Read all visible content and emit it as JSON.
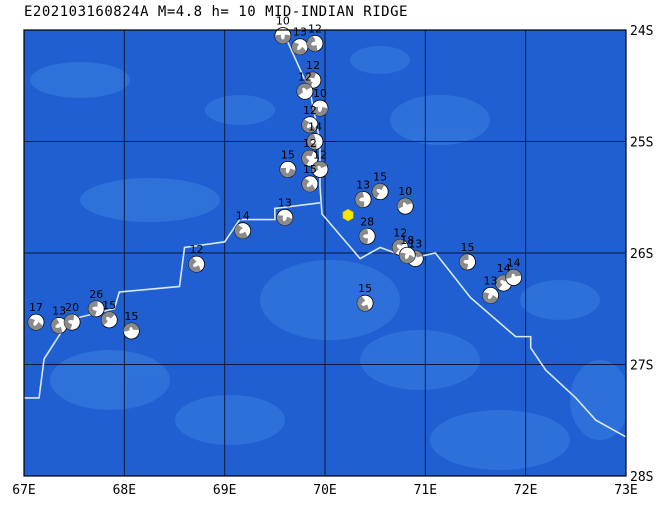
{
  "title": "E202103160824A M=4.8 h= 10 MID-INDIAN RIDGE",
  "colors": {
    "ocean": "#1f5fd1",
    "bathy_light": "#3a7fe0",
    "grid": "#0a1a3a",
    "ridge": "#d8e8f4",
    "epicenter": "#f7e600",
    "beachball_gray": "#8a8a8a"
  },
  "map": {
    "lon_min": 67,
    "lon_max": 73,
    "lat_min": -28,
    "lat_max": -24,
    "x_ticks": [
      {
        "value": 67,
        "label": "67E"
      },
      {
        "value": 68,
        "label": "68E"
      },
      {
        "value": 69,
        "label": "69E"
      },
      {
        "value": 70,
        "label": "70E"
      },
      {
        "value": 71,
        "label": "71E"
      },
      {
        "value": 72,
        "label": "72E"
      },
      {
        "value": 73,
        "label": "73E"
      }
    ],
    "y_ticks": [
      {
        "value": -24,
        "label": "24S"
      },
      {
        "value": -25,
        "label": "25S"
      },
      {
        "value": -26,
        "label": "26S"
      },
      {
        "value": -27,
        "label": "27S"
      },
      {
        "value": -28,
        "label": "28S"
      }
    ]
  },
  "ridge": [
    [
      69.6,
      -24.05
    ],
    [
      69.85,
      -24.55
    ],
    [
      69.95,
      -25.0
    ],
    [
      69.95,
      -25.4
    ],
    [
      69.97,
      -25.65
    ],
    [
      70.35,
      -26.05
    ],
    [
      70.55,
      -25.95
    ],
    [
      70.85,
      -26.05
    ],
    [
      71.1,
      -26.0
    ],
    [
      71.45,
      -26.4
    ],
    [
      71.9,
      -26.75
    ],
    [
      72.05,
      -26.75
    ],
    [
      72.05,
      -26.85
    ],
    [
      72.2,
      -27.05
    ],
    [
      72.5,
      -27.3
    ],
    [
      72.7,
      -27.5
    ],
    [
      73.0,
      -27.65
    ]
  ],
  "ridge_west": [
    [
      69.95,
      -25.55
    ],
    [
      69.5,
      -25.6
    ],
    [
      69.5,
      -25.7
    ],
    [
      69.15,
      -25.7
    ],
    [
      69.0,
      -25.9
    ],
    [
      68.6,
      -25.95
    ],
    [
      68.55,
      -26.3
    ],
    [
      67.95,
      -26.35
    ],
    [
      67.9,
      -26.5
    ],
    [
      67.45,
      -26.6
    ],
    [
      67.2,
      -26.95
    ],
    [
      67.15,
      -27.3
    ],
    [
      67.0,
      -27.3
    ]
  ],
  "epicenter": {
    "lon": 70.23,
    "lat": -25.66
  },
  "events": [
    {
      "lon": 69.58,
      "lat": -24.05,
      "depth": "10"
    },
    {
      "lon": 69.75,
      "lat": -24.15,
      "depth": "13"
    },
    {
      "lon": 69.9,
      "lat": -24.12,
      "depth": "12"
    },
    {
      "lon": 69.88,
      "lat": -24.45,
      "depth": "12"
    },
    {
      "lon": 69.8,
      "lat": -24.55,
      "depth": "12"
    },
    {
      "lon": 69.95,
      "lat": -24.7,
      "depth": "10"
    },
    {
      "lon": 69.85,
      "lat": -24.85,
      "depth": "12"
    },
    {
      "lon": 69.9,
      "lat": -25.0,
      "depth": "14"
    },
    {
      "lon": 69.85,
      "lat": -25.15,
      "depth": "12"
    },
    {
      "lon": 69.95,
      "lat": -25.25,
      "depth": "12"
    },
    {
      "lon": 69.63,
      "lat": -25.25,
      "depth": "15"
    },
    {
      "lon": 69.85,
      "lat": -25.38,
      "depth": "15"
    },
    {
      "lon": 70.38,
      "lat": -25.52,
      "depth": "13"
    },
    {
      "lon": 70.55,
      "lat": -25.45,
      "depth": "15"
    },
    {
      "lon": 70.8,
      "lat": -25.58,
      "depth": "10"
    },
    {
      "lon": 69.6,
      "lat": -25.68,
      "depth": "13"
    },
    {
      "lon": 69.18,
      "lat": -25.8,
      "depth": "14"
    },
    {
      "lon": 70.42,
      "lat": -25.85,
      "depth": "28"
    },
    {
      "lon": 70.75,
      "lat": -25.95,
      "depth": "12"
    },
    {
      "lon": 70.9,
      "lat": -26.05,
      "depth": "13"
    },
    {
      "lon": 70.82,
      "lat": -26.02,
      "depth": "18"
    },
    {
      "lon": 68.72,
      "lat": -26.1,
      "depth": "12"
    },
    {
      "lon": 71.42,
      "lat": -26.08,
      "depth": "15"
    },
    {
      "lon": 71.78,
      "lat": -26.27,
      "depth": "14"
    },
    {
      "lon": 71.88,
      "lat": -26.22,
      "depth": "14"
    },
    {
      "lon": 71.65,
      "lat": -26.38,
      "depth": "13"
    },
    {
      "lon": 70.4,
      "lat": -26.45,
      "depth": "15"
    },
    {
      "lon": 67.72,
      "lat": -26.5,
      "depth": "26"
    },
    {
      "lon": 67.85,
      "lat": -26.6,
      "depth": "15"
    },
    {
      "lon": 68.07,
      "lat": -26.7,
      "depth": "15"
    },
    {
      "lon": 67.12,
      "lat": -26.62,
      "depth": "17"
    },
    {
      "lon": 67.35,
      "lat": -26.65,
      "depth": "13"
    },
    {
      "lon": 67.48,
      "lat": -26.62,
      "depth": "20"
    }
  ]
}
